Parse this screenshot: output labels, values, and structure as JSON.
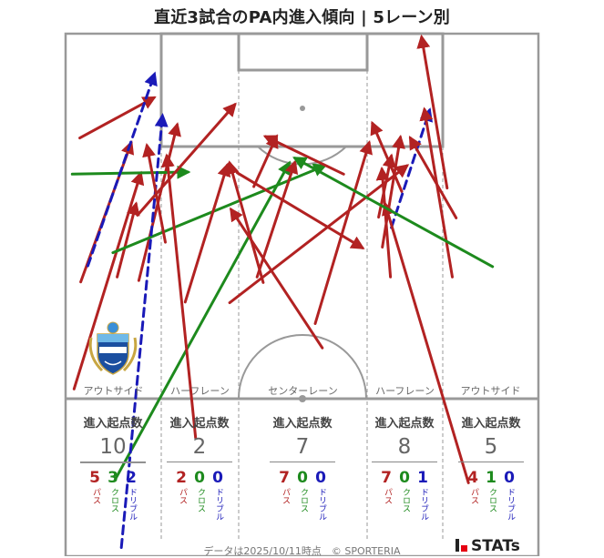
{
  "title": "直近3試合のPA内進入傾向 | 5レーン別",
  "lanes": [
    {
      "name": "アウトサイド",
      "stat_head": "進入起点数",
      "total": "10",
      "pass": "5",
      "cross": "3",
      "dribble": "2"
    },
    {
      "name": "ハーフレーン",
      "stat_head": "進入起点数",
      "total": "2",
      "pass": "2",
      "cross": "0",
      "dribble": "0"
    },
    {
      "name": "センターレーン",
      "stat_head": "進入起点数",
      "total": "7",
      "pass": "7",
      "cross": "0",
      "dribble": "0"
    },
    {
      "name": "ハーフレーン",
      "stat_head": "進入起点数",
      "total": "8",
      "pass": "7",
      "cross": "0",
      "dribble": "1"
    },
    {
      "name": "アウトサイド",
      "stat_head": "進入起点数",
      "total": "5",
      "pass": "4",
      "cross": "1",
      "dribble": "0"
    }
  ],
  "labels": {
    "pass": "パス",
    "cross": "クロス",
    "dribble": "ドリブル"
  },
  "colors": {
    "pass": "#b22222",
    "cross": "#1d8a1d",
    "dribble": "#1a1ab8",
    "pitch_line": "#999999"
  },
  "footer": "データは2025/10/11時点　© SPORTERIA",
  "logo_text": "STATs",
  "emblem_icon": "kawasaki-frontale-emblem",
  "chart_data": {
    "type": "scatter",
    "title": "直近3試合のPA内進入傾向 | 5レーン別",
    "categories": [
      "アウトサイド",
      "ハーフレーン",
      "センターレーン",
      "ハーフレーン",
      "アウトサイド"
    ],
    "series": [
      {
        "name": "パス",
        "values": [
          5,
          2,
          7,
          7,
          4
        ]
      },
      {
        "name": "クロス",
        "values": [
          3,
          0,
          0,
          0,
          1
        ]
      },
      {
        "name": "ドリブル",
        "values": [
          2,
          0,
          0,
          1,
          0
        ]
      }
    ],
    "totals": [
      10,
      2,
      7,
      8,
      5
    ],
    "arrows": [
      {
        "type": "pass",
        "from": [
          3.2,
          69.3
        ],
        "to": [
          13.9,
          89.3
        ]
      },
      {
        "type": "pass",
        "from": [
          3.0,
          90.0
        ],
        "to": [
          18.7,
          95.8
        ]
      },
      {
        "type": "pass",
        "from": [
          1.8,
          53.9
        ],
        "to": [
          15.9,
          84.9
        ]
      },
      {
        "type": "pass",
        "from": [
          15.5,
          69.5
        ],
        "to": [
          23.6,
          91.9
        ]
      },
      {
        "type": "pass",
        "from": [
          10.9,
          70.0
        ],
        "to": [
          14.9,
          80.5
        ]
      },
      {
        "type": "cross",
        "from": [
          1.4,
          84.8
        ],
        "to": [
          25.9,
          85.1
        ]
      },
      {
        "type": "cross",
        "from": [
          10.0,
          73.5
        ],
        "to": [
          54.8,
          86.0
        ]
      },
      {
        "type": "cross",
        "from": [
          10.5,
          40.9
        ],
        "to": [
          47.3,
          86.4
        ]
      },
      {
        "type": "dribble",
        "from": [
          4.7,
          71.6
        ],
        "to": [
          18.8,
          99.2
        ]
      },
      {
        "type": "dribble",
        "from": [
          11.8,
          31.1
        ],
        "to": [
          20.5,
          93.2
        ]
      },
      {
        "type": "pass",
        "from": [
          15.2,
          78.9
        ],
        "to": [
          35.8,
          94.8
        ]
      },
      {
        "type": "pass",
        "from": [
          21.1,
          75.0
        ],
        "to": [
          17.2,
          88.9
        ]
      },
      {
        "type": "pass",
        "from": [
          27.5,
          46.9
        ],
        "to": [
          21.4,
          87.4
        ]
      },
      {
        "type": "pass",
        "from": [
          25.3,
          66.4
        ],
        "to": [
          34.2,
          86.1
        ]
      },
      {
        "type": "pass",
        "from": [
          34.7,
          66.3
        ],
        "to": [
          72.2,
          86.0
        ]
      },
      {
        "type": "pass",
        "from": [
          41.8,
          69.2
        ],
        "to": [
          34.7,
          86.4
        ]
      },
      {
        "type": "pass",
        "from": [
          36.3,
          85.0
        ],
        "to": [
          62.8,
          74.2
        ]
      },
      {
        "type": "pass",
        "from": [
          39.8,
          83.0
        ],
        "to": [
          44.6,
          90.2
        ]
      },
      {
        "type": "pass",
        "from": [
          40.5,
          70.0
        ],
        "to": [
          48.5,
          86.5
        ]
      },
      {
        "type": "pass",
        "from": [
          58.8,
          84.8
        ],
        "to": [
          42.3,
          90.2
        ]
      },
      {
        "type": "pass",
        "from": [
          54.3,
          59.8
        ],
        "to": [
          35.0,
          79.7
        ]
      },
      {
        "type": "pass",
        "from": [
          52.8,
          63.3
        ],
        "to": [
          64.2,
          89.3
        ]
      },
      {
        "type": "pass",
        "from": [
          71.1,
          82.3
        ],
        "to": [
          64.9,
          92.1
        ]
      },
      {
        "type": "pass",
        "from": [
          68.7,
          70.0
        ],
        "to": [
          66.9,
          85.5
        ]
      },
      {
        "type": "pass",
        "from": [
          67.0,
          74.3
        ],
        "to": [
          70.8,
          90.1
        ]
      },
      {
        "type": "pass",
        "from": [
          66.2,
          78.6
        ],
        "to": [
          68.9,
          87.4
        ]
      },
      {
        "type": "dribble",
        "from": [
          68.9,
          77.1
        ],
        "to": [
          77.0,
          94.0
        ]
      },
      {
        "type": "pass",
        "from": [
          85.2,
          40.4
        ],
        "to": [
          67.6,
          80.5
        ]
      },
      {
        "type": "pass",
        "from": [
          81.8,
          70.0
        ],
        "to": [
          75.9,
          94.1
        ]
      },
      {
        "type": "pass",
        "from": [
          82.6,
          78.5
        ],
        "to": [
          72.9,
          90.0
        ]
      },
      {
        "type": "pass",
        "from": [
          80.7,
          82.8
        ],
        "to": [
          75.3,
          104.5
        ]
      },
      {
        "type": "cross",
        "from": [
          90.3,
          71.5
        ],
        "to": [
          48.5,
          87.1
        ]
      }
    ]
  }
}
